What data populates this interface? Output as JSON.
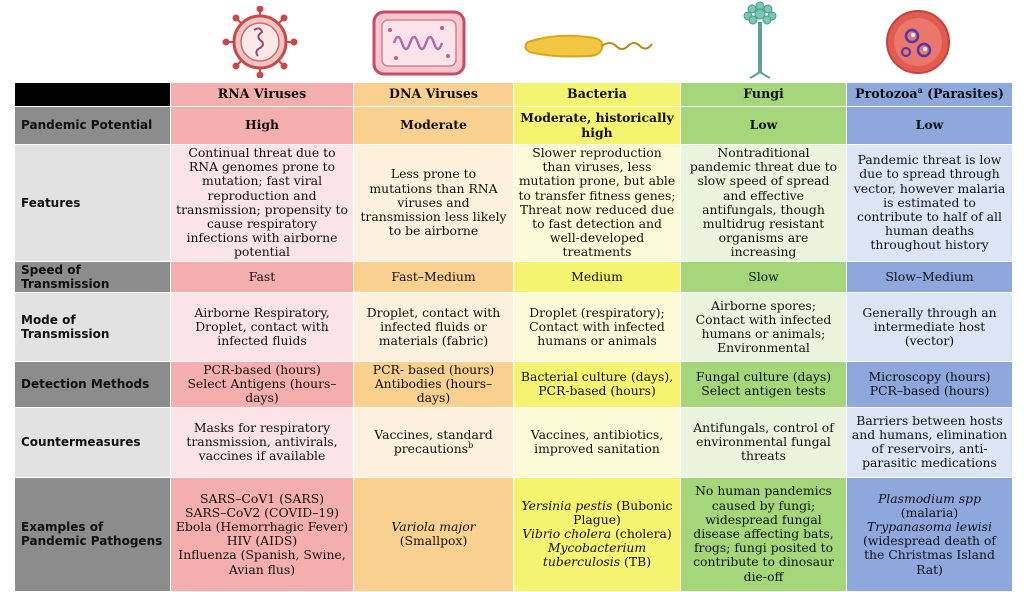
{
  "colors": {
    "rna_dark": "#f4aeae",
    "rna_light": "#fbe3e7",
    "dna_dark": "#f9d08f",
    "dna_light": "#fdf0dd",
    "bact_dark": "#f4f471",
    "bact_light": "#fcfbd8",
    "fungi_dark": "#a5d67a",
    "fungi_light": "#e8f4dc",
    "proto_dark": "#8ea7dc",
    "proto_light": "#dce5f5",
    "label_dark": "#8c8c8c",
    "label_light": "#e2e2e2",
    "corner": "#000000"
  },
  "icons": [
    "rna-virus-icon",
    "dna-virus-icon",
    "bacteria-icon",
    "fungi-icon",
    "protozoa-icon"
  ],
  "columns": {
    "rna": "RNA Viruses",
    "dna": "DNA Viruses",
    "bacteria": "Bacteria",
    "fungi": "Fungi",
    "protozoa_main": "Protozoa",
    "protozoa_sup": "a",
    "protozoa_tail": " (Parasites)"
  },
  "rows": {
    "pandemic": {
      "label": "Pandemic Potential",
      "rna": "High",
      "dna": "Moderate",
      "bacteria": "Moderate, historically high",
      "fungi": "Low",
      "protozoa": "Low"
    },
    "features": {
      "label": "Features",
      "rna": "Continual threat due to RNA genomes prone to mutation; fast viral reproduction and transmission; propensity to cause respiratory infections with airborne potential",
      "dna": "Less prone to mutations than RNA viruses and transmission less likely to be airborne",
      "bacteria": "Slower reproduction than viruses, less mutation prone, but able to transfer fitness genes; Threat now reduced due to fast detection and well-developed treatments",
      "fungi": "Nontraditional pandemic threat due to slow speed of spread and effective antifungals, though multidrug resistant organisms are increasing",
      "protozoa": "Pandemic threat is low due to spread through vector, however malaria is estimated to contribute to half of all human deaths throughout history"
    },
    "speed": {
      "label": "Speed of Transmission",
      "rna": "Fast",
      "dna": "Fast–Medium",
      "bacteria": "Medium",
      "fungi": "Slow",
      "protozoa": "Slow–Medium"
    },
    "mode": {
      "label": "Mode of Transmission",
      "rna": "Airborne Respiratory, Droplet, contact with infected fluids",
      "dna": "Droplet, contact with infected fluids or materials (fabric)",
      "bacteria": "Droplet (respiratory); Contact with infected humans or animals",
      "fungi": "Airborne spores; Contact with infected humans or animals; Environmental",
      "protozoa": "Generally through an intermediate host (vector)"
    },
    "detection": {
      "label": "Detection Methods",
      "rna_1": "PCR-based (hours)",
      "rna_2": "Select Antigens (hours–days)",
      "dna_1": "PCR- based (hours)",
      "dna_2": "Antibodies (hours–days)",
      "bacteria_1": "Bacterial culture (days),",
      "bacteria_2": "PCR-based (hours)",
      "fungi_1": "Fungal culture (days)",
      "fungi_2": "Select antigen tests",
      "protozoa_1": "Microscopy (hours)",
      "protozoa_2": "PCR–based  (hours)"
    },
    "counter": {
      "label": "Countermeasures",
      "rna": "Masks for respiratory transmission, antivirals, vaccines if available",
      "dna_main": "Vaccines, standard precautions",
      "dna_sup": "b",
      "bacteria": "Vaccines, antibiotics, improved sanitation",
      "fungi": "Antifungals, control of environmental fungal threats",
      "protozoa": "Barriers between hosts and humans, elimination of reservoirs, anti-parasitic medications"
    },
    "examples": {
      "label": "Examples of Pandemic Pathogens",
      "rna": [
        "SARS–CoV1 (SARS)",
        "SARS–CoV2 (COVID–19)",
        "Ebola (Hemorrhagic Fever)",
        "HIV (AIDS)",
        "Influenza (Spanish, Swine, Avian flus)"
      ],
      "dna_italic": "Variola major",
      "dna_rest": " (Smallpox)",
      "bact_1_italic": "Yersinia pestis",
      "bact_1_rest": " (Bubonic Plague)",
      "bact_2_italic": "Vibrio cholera",
      "bact_2_rest": " (cholera)",
      "bact_3_italic": "Mycobacterium tuberculosis",
      "bact_3_rest": " (TB)",
      "fungi": "No human pandemics caused by fungi; widespread fungal disease affecting bats, frogs; fungi posited to contribute to dinosaur die-off",
      "proto_1_italic": "Plasmodium spp",
      "proto_1_rest": " (malaria)",
      "proto_2_italic": "Trypanasoma lewisi",
      "proto_2_rest": " (widespread death of the Christmas Island Rat)"
    }
  }
}
